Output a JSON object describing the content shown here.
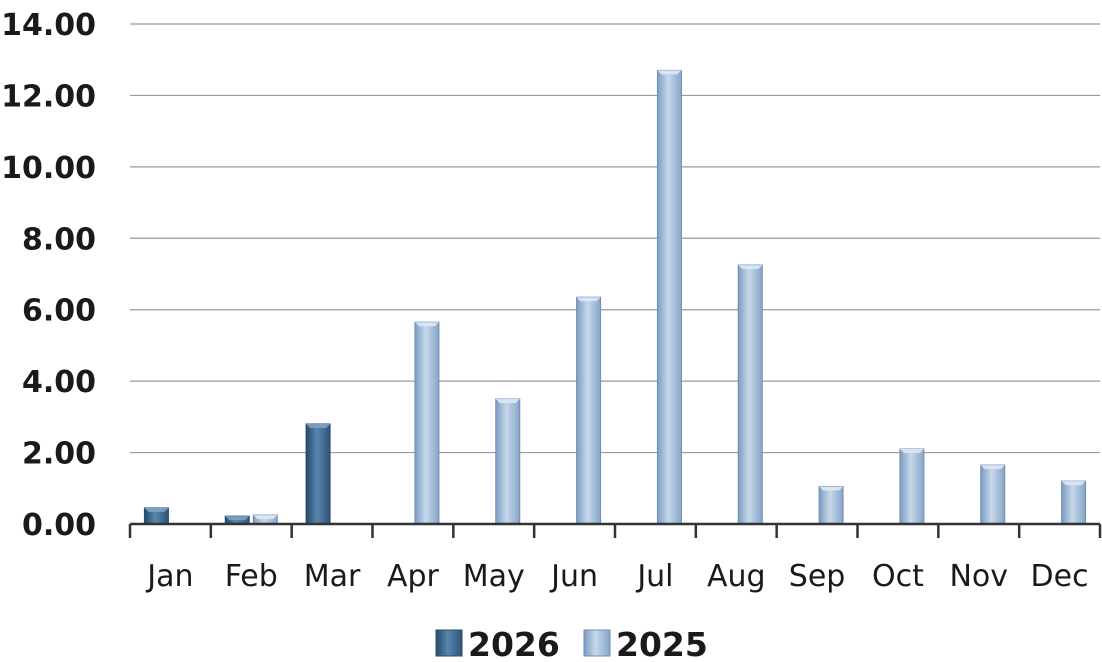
{
  "chart_data": {
    "type": "bar",
    "title": "",
    "xlabel": "",
    "ylabel": "",
    "categories": [
      "Jan",
      "Feb",
      "Mar",
      "Apr",
      "May",
      "Jun",
      "Jul",
      "Aug",
      "Sep",
      "Oct",
      "Nov",
      "Dec"
    ],
    "ylim": [
      0,
      14
    ],
    "y_ticks": [
      "0.00",
      "2.00",
      "4.00",
      "6.00",
      "8.00",
      "10.00",
      "12.00",
      "14.00"
    ],
    "grid": true,
    "legend_position": "bottom",
    "series": [
      {
        "name": "2026",
        "color": "#3d6a92",
        "values": [
          0.45,
          0.22,
          2.8,
          null,
          null,
          null,
          null,
          null,
          null,
          null,
          null,
          null
        ]
      },
      {
        "name": "2025",
        "color": "#9cb6d4",
        "values": [
          null,
          0.25,
          null,
          5.65,
          3.5,
          6.35,
          12.7,
          7.25,
          1.05,
          2.1,
          1.65,
          1.2
        ]
      }
    ]
  }
}
